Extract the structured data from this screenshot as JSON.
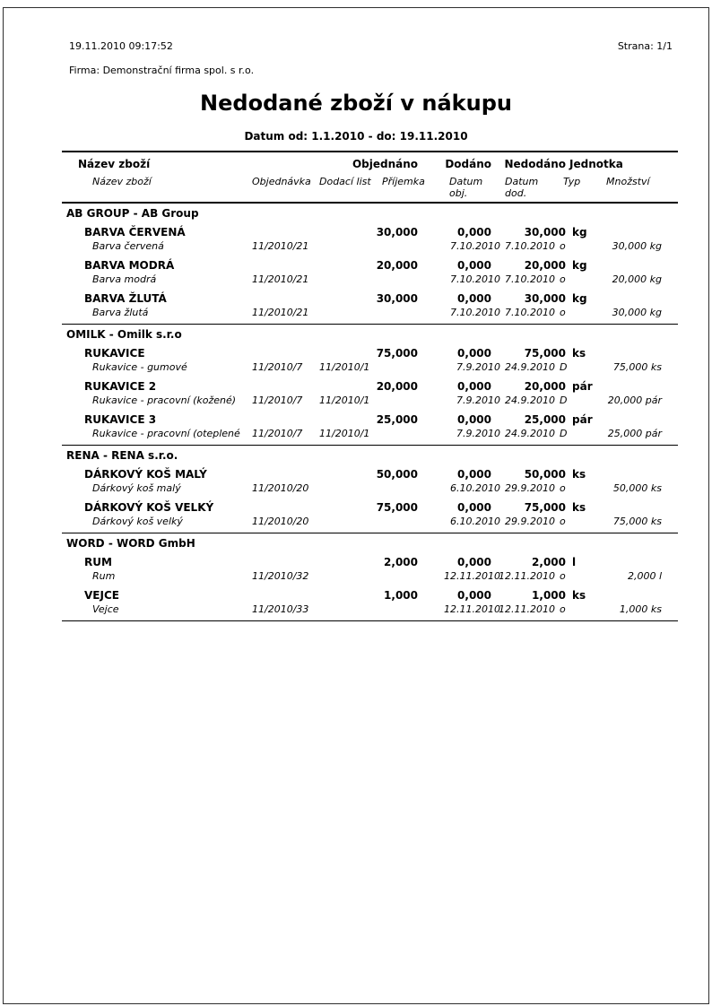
{
  "page_header": {
    "printed_at": "19.11.2010 09:17:52",
    "page_number": "Strana: 1/1",
    "company": "Firma: Demonstrační firma spol. s r.o."
  },
  "report": {
    "title": "Nedodané zboží v nákupu",
    "date_range": "Datum od: 1.1.2010 - do: 19.11.2010",
    "columns_primary": {
      "nazev": "Název zboží",
      "objednano": "Objednáno",
      "dodano": "Dodáno",
      "nedodano": "Nedodáno",
      "jednotka": "Jednotka"
    },
    "columns_secondary": {
      "nazev": "Název zboží",
      "objednavka": "Objednávka",
      "dodaci_list": "Dodací list",
      "prijemka": "Příjemka",
      "datum_obj": "Datum obj.",
      "datum_dod": "Datum dod.",
      "typ": "Typ",
      "mnozstvi": "Množství"
    },
    "groups": [
      {
        "name": "AB GROUP - AB Group",
        "items": [
          {
            "name": "BARVA ČERVENÁ",
            "desc": "Barva červená",
            "objednavka": "11/2010/21",
            "dodaci_list": "",
            "objednano": "30,000",
            "dodano": "0,000",
            "nedodano": "30,000",
            "jednotka": "kg",
            "datum_obj": "7.10.2010",
            "datum_dod": "7.10.2010",
            "typ": "o",
            "mnozstvi": "30,000 kg"
          },
          {
            "name": "BARVA MODRÁ",
            "desc": "Barva modrá",
            "objednavka": "11/2010/21",
            "dodaci_list": "",
            "objednano": "20,000",
            "dodano": "0,000",
            "nedodano": "20,000",
            "jednotka": "kg",
            "datum_obj": "7.10.2010",
            "datum_dod": "7.10.2010",
            "typ": "o",
            "mnozstvi": "20,000 kg"
          },
          {
            "name": "BARVA ŽLUTÁ",
            "desc": "Barva žlutá",
            "objednavka": "11/2010/21",
            "dodaci_list": "",
            "objednano": "30,000",
            "dodano": "0,000",
            "nedodano": "30,000",
            "jednotka": "kg",
            "datum_obj": "7.10.2010",
            "datum_dod": "7.10.2010",
            "typ": "o",
            "mnozstvi": "30,000 kg"
          }
        ]
      },
      {
        "name": "OMILK - Omilk s.r.o",
        "items": [
          {
            "name": "RUKAVICE",
            "desc": "Rukavice - gumové",
            "objednavka": "11/2010/7",
            "dodaci_list": "11/2010/1",
            "objednano": "75,000",
            "dodano": "0,000",
            "nedodano": "75,000",
            "jednotka": "ks",
            "datum_obj": "7.9.2010",
            "datum_dod": "24.9.2010",
            "typ": "D",
            "mnozstvi": "75,000 ks"
          },
          {
            "name": "RUKAVICE 2",
            "desc": "Rukavice - pracovní (kožené)",
            "objednavka": "11/2010/7",
            "dodaci_list": "11/2010/1",
            "objednano": "20,000",
            "dodano": "0,000",
            "nedodano": "20,000",
            "jednotka": "pár",
            "datum_obj": "7.9.2010",
            "datum_dod": "24.9.2010",
            "typ": "D",
            "mnozstvi": "20,000 pár"
          },
          {
            "name": "RUKAVICE 3",
            "desc": "Rukavice - pracovní (oteplené",
            "objednavka": "11/2010/7",
            "dodaci_list": "11/2010/1",
            "objednano": "25,000",
            "dodano": "0,000",
            "nedodano": "25,000",
            "jednotka": "pár",
            "datum_obj": "7.9.2010",
            "datum_dod": "24.9.2010",
            "typ": "D",
            "mnozstvi": "25,000 pár"
          }
        ]
      },
      {
        "name": "RENA - RENA s.r.o.",
        "items": [
          {
            "name": "DÁRKOVÝ KOŠ MALÝ",
            "desc": "Dárkový koš malý",
            "objednavka": "11/2010/20",
            "dodaci_list": "",
            "objednano": "50,000",
            "dodano": "0,000",
            "nedodano": "50,000",
            "jednotka": "ks",
            "datum_obj": "6.10.2010",
            "datum_dod": "29.9.2010",
            "typ": "o",
            "mnozstvi": "50,000 ks"
          },
          {
            "name": "DÁRKOVÝ KOŠ VELKÝ",
            "desc": "Dárkový koš velký",
            "objednavka": "11/2010/20",
            "dodaci_list": "",
            "objednano": "75,000",
            "dodano": "0,000",
            "nedodano": "75,000",
            "jednotka": "ks",
            "datum_obj": "6.10.2010",
            "datum_dod": "29.9.2010",
            "typ": "o",
            "mnozstvi": "75,000 ks"
          }
        ]
      },
      {
        "name": "WORD - WORD GmbH",
        "items": [
          {
            "name": "RUM",
            "desc": "Rum",
            "objednavka": "11/2010/32",
            "dodaci_list": "",
            "objednano": "2,000",
            "dodano": "0,000",
            "nedodano": "2,000",
            "jednotka": "l",
            "datum_obj": "12.11.2010",
            "datum_dod": "12.11.2010",
            "typ": "o",
            "mnozstvi": "2,000 l"
          },
          {
            "name": "VEJCE",
            "desc": "Vejce",
            "objednavka": "11/2010/33",
            "dodaci_list": "",
            "objednano": "1,000",
            "dodano": "0,000",
            "nedodano": "1,000",
            "jednotka": "ks",
            "datum_obj": "12.11.2010",
            "datum_dod": "12.11.2010",
            "typ": "o",
            "mnozstvi": "1,000 ks"
          }
        ]
      }
    ]
  }
}
